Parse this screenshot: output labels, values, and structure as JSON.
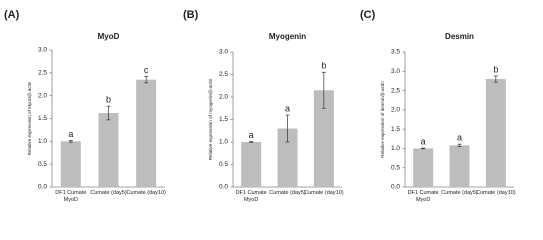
{
  "chart_data": [
    {
      "type": "bar",
      "panel_label": "(A)",
      "title": "MyoD",
      "ylabel": "Relative expression of MyoD/β-actin",
      "categories": [
        "DF1 Cumate MyoD",
        "Cumate (day5)",
        "Cumate (day10)"
      ],
      "values": [
        1.0,
        1.62,
        2.35
      ],
      "errors": [
        0.02,
        0.15,
        0.07
      ],
      "annotations": [
        "a",
        "b",
        "c"
      ],
      "color": "#bdbdbd",
      "ylim": [
        0,
        3.0
      ],
      "yticks": [
        {
          "value": 0,
          "label": "0.0"
        },
        0.5,
        {
          "value": 1,
          "label": "1.0"
        },
        1.5,
        {
          "value": 2,
          "label": "2.0"
        },
        2.5,
        {
          "value": 3,
          "label": "3.0"
        }
      ]
    },
    {
      "type": "bar",
      "panel_label": "(B)",
      "title": "Myogenin",
      "ylabel": "Relative expression of myogenin/β-actin",
      "categories": [
        "DF1 Cumate MyoD",
        "Cumate (day5)",
        "Cumate (day10)"
      ],
      "values": [
        1.0,
        1.3,
        2.15
      ],
      "errors": [
        0.01,
        0.3,
        0.4
      ],
      "annotations": [
        "a",
        "a",
        "b"
      ],
      "color": "#bdbdbd",
      "ylim": [
        0,
        3.0
      ],
      "yticks": [
        {
          "value": 0,
          "label": "0.0"
        },
        0.5,
        {
          "value": 1,
          "label": "1.0"
        },
        1.5,
        {
          "value": 2,
          "label": "2.0"
        },
        2.5,
        {
          "value": 3,
          "label": "3.0"
        }
      ]
    },
    {
      "type": "bar",
      "panel_label": "(C)",
      "title": "Desmin",
      "ylabel": "Relative expression of desmin/β-actin",
      "categories": [
        "DF1 Cumate MyoD",
        "Cumate (day5)",
        "Cumate (day10)"
      ],
      "values": [
        1.0,
        1.08,
        2.8
      ],
      "errors": [
        0.01,
        0.03,
        0.08
      ],
      "annotations": [
        "a",
        "a",
        "b"
      ],
      "color": "#bdbdbd",
      "ylim": [
        0,
        3.5
      ],
      "yticks": [
        {
          "value": 0,
          "label": "0.0"
        },
        0.5,
        {
          "value": 1,
          "label": "1.0"
        },
        1.5,
        {
          "value": 2,
          "label": "2.0"
        },
        2.5,
        {
          "value": 3,
          "label": "3.0"
        },
        3.5
      ]
    }
  ]
}
